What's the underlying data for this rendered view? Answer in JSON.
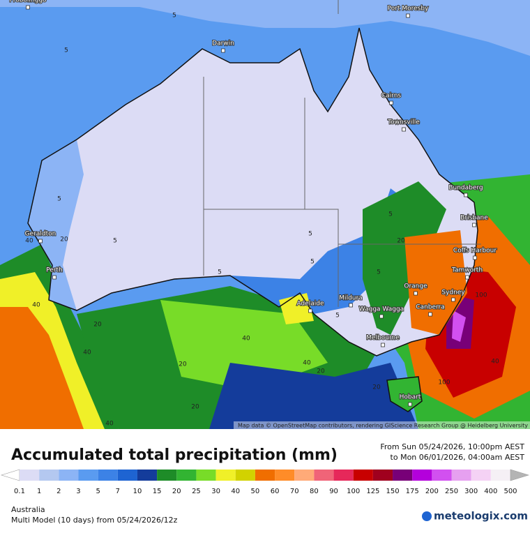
{
  "map": {
    "cities": [
      "Probolinggo",
      "Port Moresby",
      "Darwin",
      "Cairns",
      "Townsville",
      "Bundaberg",
      "Brisbane",
      "Geraldton",
      "Coffs Harbour",
      "Tamworth",
      "Perth",
      "Orange",
      "Sydney",
      "Adelaide",
      "Mildura",
      "Wagga Wagga",
      "Canberra",
      "Melbourne",
      "Hobart"
    ],
    "contour_labels": [
      "5",
      "5",
      "5",
      "5",
      "5",
      "5",
      "5",
      "5",
      "5",
      "5",
      "20",
      "20",
      "20",
      "20",
      "20",
      "20",
      "20",
      "40",
      "40",
      "40",
      "40",
      "40",
      "40",
      "40",
      "100",
      "100"
    ],
    "attribution": "Map data © OpenStreetMap contributors, rendering GIScience Research Group @ Heidelberg University"
  },
  "title": "Accumulated total precipitation (mm)",
  "period": {
    "from": "From Sun 05/24/2026, 10:00pm AEST",
    "to": "to Mon 06/01/2026, 04:00am AEST"
  },
  "legend": {
    "colors": [
      "#ffffff",
      "#dcdcf5",
      "#b4c8f0",
      "#8cb4f5",
      "#5a9bf0",
      "#3c82e6",
      "#1e64d2",
      "#143c9b",
      "#1e8c28",
      "#32b432",
      "#78dc28",
      "#f0f028",
      "#d2d200",
      "#f06e00",
      "#ff8c28",
      "#ffaa78",
      "#f06478",
      "#e6285a",
      "#c80000",
      "#a0001e",
      "#780078",
      "#b400dc",
      "#d250f0",
      "#e6a0f0",
      "#f5d2f5",
      "#f5f0f5",
      "#b4b4b4"
    ],
    "labels": [
      "0.1",
      "1",
      "2",
      "3",
      "5",
      "7",
      "10",
      "15",
      "20",
      "25",
      "30",
      "40",
      "50",
      "60",
      "70",
      "80",
      "90",
      "100",
      "125",
      "150",
      "175",
      "200",
      "250",
      "300",
      "400",
      "500"
    ]
  },
  "region": "Australia",
  "model": "Multi Model (10 days) from 05/24/2026/12z",
  "brand": "meteologix.com"
}
